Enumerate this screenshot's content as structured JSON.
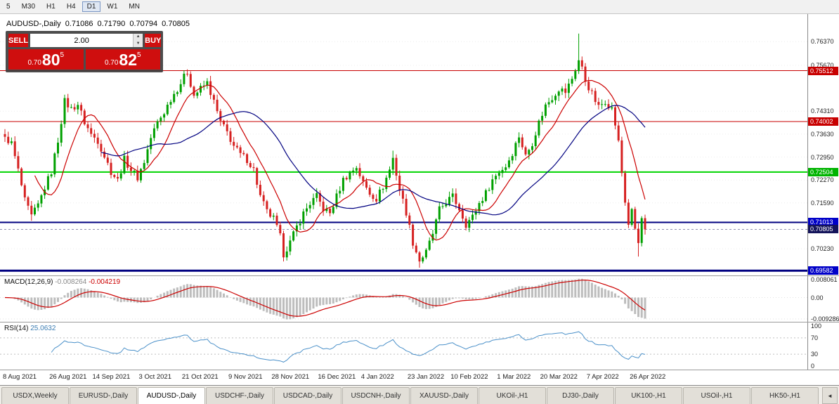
{
  "toolbar": {
    "timeframes": [
      {
        "label": "5",
        "active": false
      },
      {
        "label": "M30",
        "active": false
      },
      {
        "label": "H1",
        "active": false
      },
      {
        "label": "H4",
        "active": false
      },
      {
        "label": "D1",
        "active": true
      },
      {
        "label": "W1",
        "active": false
      },
      {
        "label": "MN",
        "active": false
      }
    ]
  },
  "chart_header": {
    "symbol_title": "AUDUSD-,Daily",
    "open": "0.71086",
    "high": "0.71790",
    "low": "0.70794",
    "close": "0.70805"
  },
  "trade_widget": {
    "sell_label": "SELL",
    "buy_label": "BUY",
    "volume": "2.00",
    "spinner_up": "▲",
    "spinner_down": "▼",
    "bid": {
      "prefix": "0.70",
      "big": "80",
      "sup": "5"
    },
    "ask": {
      "prefix": "0.70",
      "big": "82",
      "sup": "5"
    }
  },
  "price_axis": {
    "grid_labels": [
      {
        "text": "0.76370",
        "value": 0.7637
      },
      {
        "text": "0.75670",
        "value": 0.7567
      },
      {
        "text": "0.74310",
        "value": 0.7431
      },
      {
        "text": "0.73630",
        "value": 0.7363
      },
      {
        "text": "0.72950",
        "value": 0.7295
      },
      {
        "text": "0.72270",
        "value": 0.7227
      },
      {
        "text": "0.71590",
        "value": 0.7159
      },
      {
        "text": "0.70230",
        "value": 0.7023
      }
    ]
  },
  "indicators": {
    "macd": {
      "name": "MACD(12,26,9)",
      "main_value": "-0.008264",
      "signal_value": "-0.004219",
      "axis_labels": [
        {
          "text": "0.008061",
          "value": 0.008061
        },
        {
          "text": "0.00",
          "value": 0
        },
        {
          "text": "-0.009286",
          "value": -0.009286
        }
      ],
      "range": {
        "max": 0.0093,
        "min": -0.0105
      },
      "hist_color": "#bdbdbd",
      "signal_color": "#cc0000"
    },
    "rsi": {
      "name": "RSI(14)",
      "value": "25.0632",
      "axis_labels": [
        {
          "text": "100",
          "value": 100
        },
        {
          "text": "70",
          "value": 70
        },
        {
          "text": "30",
          "value": 30
        },
        {
          "text": "0",
          "value": 0
        }
      ],
      "levels": [
        70,
        30
      ],
      "line_color": "#4a90c9",
      "range": {
        "max": 108,
        "min": -8
      }
    }
  },
  "chart_data": {
    "type": "candlestick",
    "symbol": "AUDUSD",
    "timeframe": "Daily",
    "bar_count": 194,
    "price_range": {
      "max": 0.7719,
      "min": 0.6944
    },
    "up_color": "#00a000",
    "down_color": "#d62020",
    "last_close": 0.70805,
    "close_anchors": [
      [
        0,
        0.7355
      ],
      [
        2,
        0.7335
      ],
      [
        4,
        0.7255
      ],
      [
        6,
        0.7165
      ],
      [
        8,
        0.7118
      ],
      [
        10,
        0.7152
      ],
      [
        12,
        0.7205
      ],
      [
        14,
        0.7252
      ],
      [
        16,
        0.7345
      ],
      [
        18,
        0.746
      ],
      [
        20,
        0.7438
      ],
      [
        22,
        0.7452
      ],
      [
        24,
        0.7398
      ],
      [
        26,
        0.7362
      ],
      [
        28,
        0.7344
      ],
      [
        30,
        0.7298
      ],
      [
        32,
        0.7252
      ],
      [
        34,
        0.7226
      ],
      [
        36,
        0.7288
      ],
      [
        38,
        0.7258
      ],
      [
        40,
        0.7234
      ],
      [
        42,
        0.7282
      ],
      [
        44,
        0.7352
      ],
      [
        46,
        0.7398
      ],
      [
        48,
        0.7428
      ],
      [
        50,
        0.7468
      ],
      [
        52,
        0.7498
      ],
      [
        54,
        0.7532
      ],
      [
        55,
        0.7548
      ],
      [
        57,
        0.7478
      ],
      [
        59,
        0.7498
      ],
      [
        61,
        0.7515
      ],
      [
        63,
        0.7458
      ],
      [
        65,
        0.7398
      ],
      [
        67,
        0.7368
      ],
      [
        69,
        0.7328
      ],
      [
        71,
        0.7302
      ],
      [
        73,
        0.7288
      ],
      [
        75,
        0.7258
      ],
      [
        77,
        0.7178
      ],
      [
        79,
        0.7132
      ],
      [
        81,
        0.7112
      ],
      [
        83,
        0.7058
      ],
      [
        84,
        0.7008
      ],
      [
        86,
        0.7042
      ],
      [
        88,
        0.7088
      ],
      [
        90,
        0.7128
      ],
      [
        92,
        0.7158
      ],
      [
        94,
        0.7178
      ],
      [
        96,
        0.7142
      ],
      [
        98,
        0.7128
      ],
      [
        100,
        0.7178
      ],
      [
        102,
        0.7228
      ],
      [
        104,
        0.7248
      ],
      [
        106,
        0.7266
      ],
      [
        108,
        0.7218
      ],
      [
        110,
        0.7188
      ],
      [
        112,
        0.7172
      ],
      [
        114,
        0.7208
      ],
      [
        116,
        0.7258
      ],
      [
        117,
        0.7292
      ],
      [
        119,
        0.7198
      ],
      [
        121,
        0.7132
      ],
      [
        123,
        0.7042
      ],
      [
        125,
        0.6988
      ],
      [
        127,
        0.7012
      ],
      [
        129,
        0.7068
      ],
      [
        131,
        0.7138
      ],
      [
        133,
        0.7162
      ],
      [
        135,
        0.7178
      ],
      [
        137,
        0.7142
      ],
      [
        139,
        0.7096
      ],
      [
        141,
        0.7118
      ],
      [
        143,
        0.7158
      ],
      [
        145,
        0.7188
      ],
      [
        147,
        0.7228
      ],
      [
        149,
        0.7252
      ],
      [
        151,
        0.7268
      ],
      [
        153,
        0.7308
      ],
      [
        155,
        0.7358
      ],
      [
        157,
        0.7298
      ],
      [
        159,
        0.7338
      ],
      [
        161,
        0.7398
      ],
      [
        163,
        0.7448
      ],
      [
        165,
        0.7472
      ],
      [
        167,
        0.7498
      ],
      [
        169,
        0.7488
      ],
      [
        171,
        0.7528
      ],
      [
        173,
        0.7582
      ],
      [
        174,
        0.7558
      ],
      [
        175,
        0.7522
      ],
      [
        177,
        0.7482
      ],
      [
        179,
        0.7442
      ],
      [
        181,
        0.7462
      ],
      [
        183,
        0.7438
      ],
      [
        184,
        0.7392
      ],
      [
        185,
        0.7338
      ],
      [
        186,
        0.7248
      ],
      [
        187,
        0.7162
      ],
      [
        188,
        0.7098
      ],
      [
        189,
        0.7132
      ],
      [
        190,
        0.7082
      ],
      [
        191,
        0.7038
      ],
      [
        192,
        0.7112
      ],
      [
        193,
        0.70805
      ]
    ],
    "wick_highs": [
      [
        18,
        0.7478
      ],
      [
        55,
        0.7555
      ],
      [
        117,
        0.7314
      ],
      [
        173,
        0.7661
      ]
    ],
    "wick_lows": [
      [
        8,
        0.7106
      ],
      [
        84,
        0.6993
      ],
      [
        125,
        0.6967
      ],
      [
        191,
        0.7
      ]
    ],
    "moving_averages": [
      {
        "period": 10,
        "color": "#cc0000"
      },
      {
        "period": 30,
        "color": "#000080"
      }
    ],
    "level_lines": [
      {
        "text": "0.75512",
        "value": 0.75512,
        "color": "#c80000",
        "width": 1,
        "label_bg": "#c80000"
      },
      {
        "text": "0.74002",
        "value": 0.74002,
        "color": "#c80000",
        "width": 1,
        "label_bg": "#c80000"
      },
      {
        "text": "0.72504",
        "value": 0.72504,
        "color": "#00d400",
        "width": 2,
        "label_bg": "#00b400"
      },
      {
        "text": "0.71013",
        "value": 0.71013,
        "color": "#000080",
        "width": 2,
        "label_bg": "#0000c8"
      },
      {
        "text": "0.69582",
        "value": 0.69582,
        "color": "#000080",
        "width": 3,
        "label_bg": "#0000c8"
      }
    ],
    "current_price": {
      "text": "0.70805",
      "value": 0.70805,
      "label_bg": "#14145a"
    },
    "date_ticks": [
      {
        "label": "8 Aug 2021",
        "index": 0
      },
      {
        "label": "26 Aug 2021",
        "index": 14
      },
      {
        "label": "14 Sep 2021",
        "index": 27
      },
      {
        "label": "3 Oct 2021",
        "index": 41
      },
      {
        "label": "21 Oct 2021",
        "index": 54
      },
      {
        "label": "9 Nov 2021",
        "index": 68
      },
      {
        "label": "28 Nov 2021",
        "index": 81
      },
      {
        "label": "16 Dec 2021",
        "index": 95
      },
      {
        "label": "4 Jan 2022",
        "index": 108
      },
      {
        "label": "23 Jan 2022",
        "index": 122
      },
      {
        "label": "10 Feb 2022",
        "index": 135
      },
      {
        "label": "1 Mar 2022",
        "index": 149
      },
      {
        "label": "20 Mar 2022",
        "index": 162
      },
      {
        "label": "7 Apr 2022",
        "index": 176
      },
      {
        "label": "26 Apr 2022",
        "index": 189
      }
    ]
  },
  "tabs": {
    "scroll_button": "◄",
    "items": [
      {
        "label": "USDX,Weekly",
        "active": false
      },
      {
        "label": "EURUSD-,Daily",
        "active": false
      },
      {
        "label": "AUDUSD-,Daily",
        "active": true
      },
      {
        "label": "USDCHF-,Daily",
        "active": false
      },
      {
        "label": "USDCAD-,Daily",
        "active": false
      },
      {
        "label": "USDCNH-,Daily",
        "active": false
      },
      {
        "label": "XAUUSD-,Daily",
        "active": false
      },
      {
        "label": "UKOil-,H1",
        "active": false
      },
      {
        "label": "DJ30-,Daily",
        "active": false
      },
      {
        "label": "UK100-,H1",
        "active": false
      },
      {
        "label": "USOil-,H1",
        "active": false
      },
      {
        "label": "HK50-,H1",
        "active": false
      }
    ]
  }
}
